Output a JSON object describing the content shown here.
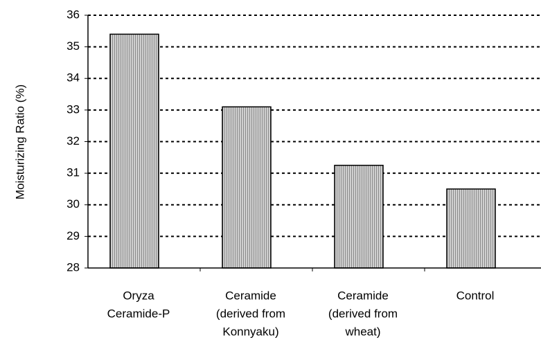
{
  "chart_data": {
    "type": "bar",
    "ylabel": "Moisturizing Ratio (%)",
    "categories": [
      [
        "Oryza",
        "Ceramide-P"
      ],
      [
        "Ceramide",
        "(derived from",
        "Konnyaku)"
      ],
      [
        "Ceramide",
        "(derived from",
        "wheat)"
      ],
      [
        "Control"
      ]
    ],
    "values": [
      35.4,
      33.1,
      31.25,
      30.5
    ],
    "color": "#b8b8b8",
    "ylim": [
      28,
      36
    ],
    "yticks": [
      28,
      29,
      30,
      31,
      32,
      33,
      34,
      35,
      36
    ],
    "grid": true
  }
}
